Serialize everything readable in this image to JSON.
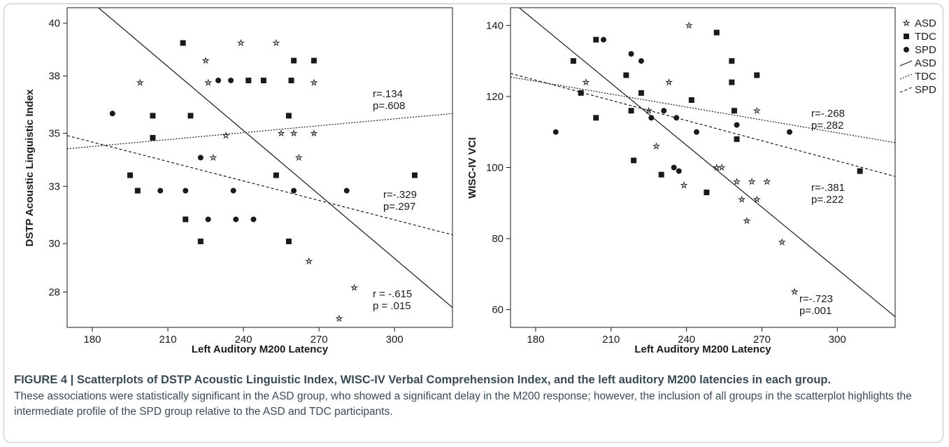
{
  "chart_data": [
    {
      "type": "scatter",
      "title": "",
      "xlabel": "Left Auditory M200 Latency",
      "ylabel": "DSTP Acoustic Linguistic Index",
      "xlim": [
        170,
        323
      ],
      "ylim": [
        26.2,
        40.7
      ],
      "xticks": [
        180,
        210,
        240,
        270,
        300
      ],
      "ytick_labels": [
        "28",
        "30",
        "33",
        "35",
        "38",
        "40"
      ],
      "ytick_values": [
        27.8,
        30.0,
        32.6,
        35.0,
        37.6,
        40.0
      ],
      "series": [
        {
          "name": "ASD",
          "marker": "star",
          "points": [
            [
              199,
              37.3
            ],
            [
              225,
              38.3
            ],
            [
              226,
              37.3
            ],
            [
              228,
              33.9
            ],
            [
              233,
              34.9
            ],
            [
              239,
              39.1
            ],
            [
              253,
              39.1
            ],
            [
              255,
              35.0
            ],
            [
              260,
              35.0
            ],
            [
              262,
              33.9
            ],
            [
              266,
              29.2
            ],
            [
              268,
              37.3
            ],
            [
              268,
              35.0
            ],
            [
              278,
              26.6
            ],
            [
              284,
              28.0
            ]
          ]
        },
        {
          "name": "TDC",
          "marker": "square",
          "points": [
            [
              195,
              33.1
            ],
            [
              198,
              32.4
            ],
            [
              204,
              35.8
            ],
            [
              204,
              34.8
            ],
            [
              216,
              39.1
            ],
            [
              217,
              31.1
            ],
            [
              219,
              35.8
            ],
            [
              223,
              30.1
            ],
            [
              242,
              37.4
            ],
            [
              248,
              37.4
            ],
            [
              253,
              33.1
            ],
            [
              258,
              30.1
            ],
            [
              258,
              35.8
            ],
            [
              259,
              37.4
            ],
            [
              260,
              38.3
            ],
            [
              268,
              38.3
            ],
            [
              308,
              33.1
            ]
          ]
        },
        {
          "name": "SPD",
          "marker": "circle",
          "points": [
            [
              188,
              35.9
            ],
            [
              207,
              32.4
            ],
            [
              217,
              32.4
            ],
            [
              223,
              33.9
            ],
            [
              226,
              31.1
            ],
            [
              230,
              37.4
            ],
            [
              235,
              37.4
            ],
            [
              236,
              32.4
            ],
            [
              237,
              31.1
            ],
            [
              244,
              31.1
            ],
            [
              260,
              32.4
            ],
            [
              281,
              32.4
            ]
          ]
        }
      ],
      "fit_lines": [
        {
          "name": "ASD",
          "style": "solid",
          "x": [
            170,
            323
          ],
          "y": [
            41.9,
            27.1
          ]
        },
        {
          "name": "TDC",
          "style": "dotted",
          "x": [
            170,
            323
          ],
          "y": [
            34.3,
            35.9
          ]
        },
        {
          "name": "SPD",
          "style": "dashed",
          "x": [
            170,
            323
          ],
          "y": [
            34.9,
            30.4
          ]
        }
      ],
      "annotations": [
        {
          "r": "r=.134",
          "p": "p=.608"
        },
        {
          "r": "r=-.329",
          "p": "p=.297"
        },
        {
          "r": "r = -.615",
          "p": "p = .015"
        }
      ]
    },
    {
      "type": "scatter",
      "title": "",
      "xlabel": "Left Auditory M200 Latency",
      "ylabel": "WISC-IV VCI",
      "xlim": [
        170,
        323
      ],
      "ylim": [
        55,
        145
      ],
      "xticks": [
        180,
        210,
        240,
        270,
        300
      ],
      "ytick_labels": [
        "60",
        "80",
        "100",
        "120",
        "140"
      ],
      "ytick_values": [
        60,
        80,
        100,
        120,
        140
      ],
      "legend_position": "outside-right",
      "series": [
        {
          "name": "ASD",
          "marker": "star",
          "points": [
            [
              200,
              124
            ],
            [
              225,
              116
            ],
            [
              228,
              106
            ],
            [
              233,
              124
            ],
            [
              239,
              95
            ],
            [
              241,
              140
            ],
            [
              252,
              100
            ],
            [
              254,
              100
            ],
            [
              260,
              96
            ],
            [
              262,
              91
            ],
            [
              264,
              85
            ],
            [
              266,
              96
            ],
            [
              268,
              91
            ],
            [
              268,
              116
            ],
            [
              272,
              96
            ],
            [
              278,
              79
            ],
            [
              283,
              65
            ]
          ]
        },
        {
          "name": "TDC",
          "marker": "square",
          "points": [
            [
              195,
              130
            ],
            [
              198,
              121
            ],
            [
              204,
              114
            ],
            [
              204,
              136
            ],
            [
              216,
              126
            ],
            [
              218,
              116
            ],
            [
              219,
              102
            ],
            [
              222,
              121
            ],
            [
              230,
              98
            ],
            [
              242,
              119
            ],
            [
              248,
              93
            ],
            [
              252,
              138
            ],
            [
              258,
              130
            ],
            [
              258,
              124
            ],
            [
              259,
              116
            ],
            [
              260,
              108
            ],
            [
              268,
              126
            ],
            [
              309,
              99
            ]
          ]
        },
        {
          "name": "SPD",
          "marker": "circle",
          "points": [
            [
              188,
              110
            ],
            [
              207,
              136
            ],
            [
              218,
              132
            ],
            [
              222,
              130
            ],
            [
              226,
              114
            ],
            [
              231,
              116
            ],
            [
              235,
              100
            ],
            [
              236,
              114
            ],
            [
              237,
              99
            ],
            [
              244,
              110
            ],
            [
              260,
              112
            ],
            [
              281,
              110
            ]
          ]
        }
      ],
      "fit_lines": [
        {
          "name": "ASD",
          "style": "solid",
          "x": [
            170,
            323
          ],
          "y": [
            147,
            58
          ]
        },
        {
          "name": "TDC",
          "style": "dotted",
          "x": [
            170,
            323
          ],
          "y": [
            125.5,
            107
          ]
        },
        {
          "name": "SPD",
          "style": "dashed",
          "x": [
            170,
            323
          ],
          "y": [
            126.5,
            97.5
          ]
        }
      ],
      "annotations": [
        {
          "r": "r=-.268",
          "p": "p=.282"
        },
        {
          "r": "r=-.381",
          "p": "p=.222"
        },
        {
          "r": "r=-.723",
          "p": "p=.001"
        }
      ],
      "legend": [
        "ASD",
        "TDC",
        "SPD",
        "ASD",
        "TDC",
        "SPD"
      ]
    }
  ],
  "caption": {
    "title": "FIGURE 4 | Scatterplots of DSTP Acoustic Linguistic Index, WISC-IV Verbal Comprehension Index, and the left auditory M200 latencies in each group.",
    "body": "These associations were statistically significant in the ASD group, who showed a significant delay in the M200 response; however, the inclusion of all groups in the scatterplot highlights the intermediate profile of the SPD group relative to the ASD and TDC participants."
  },
  "colors": {
    "ink": "#1a1a1a",
    "caption": "#3a4a55",
    "frame": "#b9c3c9"
  }
}
